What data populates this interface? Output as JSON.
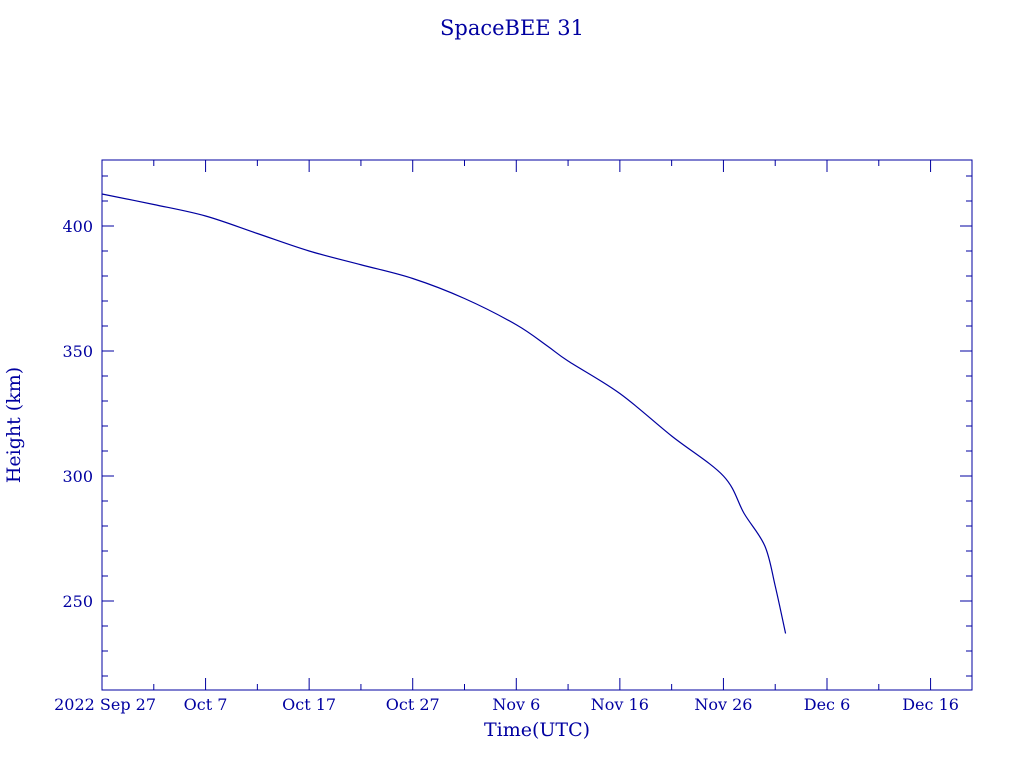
{
  "chart_data": {
    "type": "line",
    "title": "SpaceBEE 31",
    "xlabel": "Time(UTC)",
    "ylabel": "Height (km)",
    "color": "#0000a0",
    "xlim": [
      "2022-09-27",
      "2022-12-20"
    ],
    "ylim": [
      214.4,
      426.4
    ],
    "grid": false,
    "x_ticks": [
      {
        "date": "2022-09-27",
        "label": "2022 Sep 27"
      },
      {
        "date": "2022-10-07",
        "label": "Oct  7"
      },
      {
        "date": "2022-10-17",
        "label": "Oct 17"
      },
      {
        "date": "2022-10-27",
        "label": "Oct 27"
      },
      {
        "date": "2022-11-06",
        "label": "Nov  6"
      },
      {
        "date": "2022-11-16",
        "label": "Nov 16"
      },
      {
        "date": "2022-11-26",
        "label": "Nov 26"
      },
      {
        "date": "2022-12-06",
        "label": "Dec  6"
      },
      {
        "date": "2022-12-16",
        "label": "Dec 16"
      }
    ],
    "y_ticks": [
      250,
      300,
      350,
      400
    ],
    "series": [
      {
        "x": [
          "2022-09-27",
          "2022-10-02",
          "2022-10-07",
          "2022-10-12",
          "2022-10-17",
          "2022-10-22",
          "2022-10-27",
          "2022-11-01",
          "2022-11-06",
          "2022-11-09",
          "2022-11-11",
          "2022-11-16",
          "2022-11-21",
          "2022-11-26",
          "2022-11-28",
          "2022-11-30",
          "2022-12-01",
          "2022-12-02"
        ],
        "y": [
          412.8,
          408.6,
          404,
          397,
          390,
          384.5,
          379,
          371,
          360.5,
          352,
          346,
          333,
          316,
          300,
          285,
          272,
          256,
          237
        ]
      }
    ]
  }
}
